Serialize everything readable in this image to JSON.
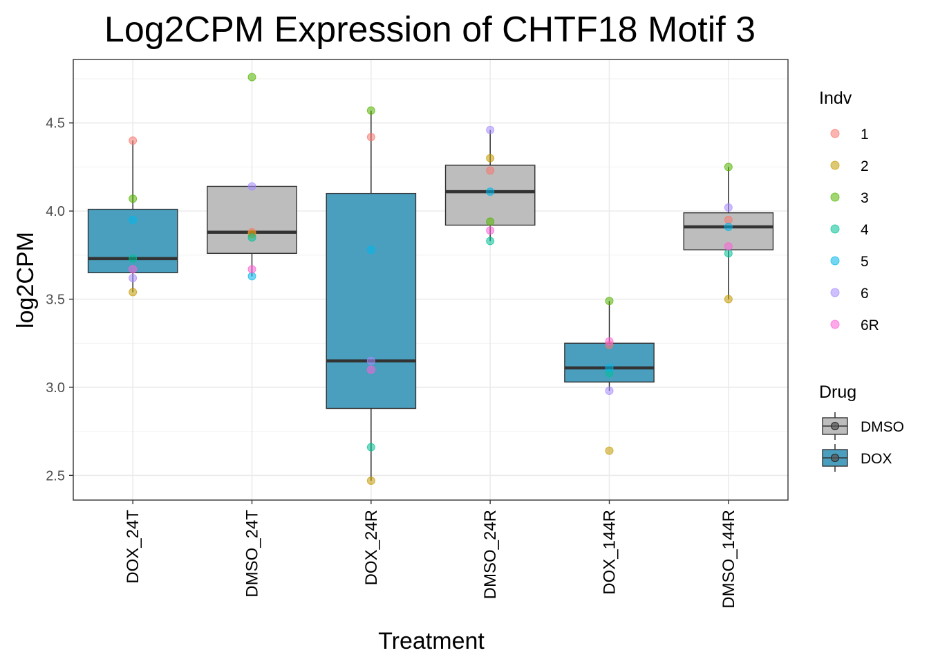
{
  "chart_data": {
    "type": "boxplot",
    "title": "Log2CPM Expression of CHTF18 Motif 3",
    "xlabel": "Treatment",
    "ylabel": "log2CPM",
    "ylim": [
      2.36,
      4.86
    ],
    "yticks": [
      2.5,
      3.0,
      3.5,
      4.0,
      4.5
    ],
    "ytick_labels": [
      "2.5",
      "3.0",
      "3.5",
      "4.0",
      "4.5"
    ],
    "grid": true,
    "legend_placement": "right",
    "categories": [
      "DOX_24T",
      "DMSO_24T",
      "DOX_24R",
      "DMSO_24R",
      "DOX_144R",
      "DMSO_144R"
    ],
    "fill_legend": {
      "title": "Drug",
      "entries": [
        {
          "name": "DMSO",
          "color": "#bdbdbd"
        },
        {
          "name": "DOX",
          "color": "#4a9fbf"
        }
      ]
    },
    "color_legend": {
      "title": "Indv",
      "entries": [
        {
          "name": "1",
          "color": "#F8766D"
        },
        {
          "name": "2",
          "color": "#C49A00"
        },
        {
          "name": "3",
          "color": "#53B400"
        },
        {
          "name": "4",
          "color": "#00C094"
        },
        {
          "name": "5",
          "color": "#00B6EB"
        },
        {
          "name": "6",
          "color": "#A58AFF"
        },
        {
          "name": "6R",
          "color": "#FB61D7"
        }
      ]
    },
    "boxes": [
      {
        "category": "DOX_24T",
        "drug": "DOX",
        "whisker_low": 3.54,
        "q1": 3.65,
        "median": 3.73,
        "q3": 4.01,
        "whisker_high": 4.4
      },
      {
        "category": "DMSO_24T",
        "drug": "DMSO",
        "whisker_low": 3.63,
        "q1": 3.76,
        "median": 3.88,
        "q3": 4.14,
        "whisker_high": 4.14
      },
      {
        "category": "DOX_24R",
        "drug": "DOX",
        "whisker_low": 2.47,
        "q1": 2.88,
        "median": 3.15,
        "q3": 4.1,
        "whisker_high": 4.57
      },
      {
        "category": "DMSO_24R",
        "drug": "DMSO",
        "whisker_low": 3.83,
        "q1": 3.92,
        "median": 4.11,
        "q3": 4.26,
        "whisker_high": 4.46
      },
      {
        "category": "DOX_144R",
        "drug": "DOX",
        "whisker_low": 2.98,
        "q1": 3.03,
        "median": 3.11,
        "q3": 3.25,
        "whisker_high": 3.49
      },
      {
        "category": "DMSO_144R",
        "drug": "DMSO",
        "whisker_low": 3.5,
        "q1": 3.78,
        "median": 3.91,
        "q3": 3.99,
        "whisker_high": 4.25
      }
    ],
    "points": [
      {
        "category": "DOX_24T",
        "indv": "1",
        "value": 4.4
      },
      {
        "category": "DOX_24T",
        "indv": "2",
        "value": 3.54
      },
      {
        "category": "DOX_24T",
        "indv": "3",
        "value": 4.07
      },
      {
        "category": "DOX_24T",
        "indv": "4",
        "value": 3.73
      },
      {
        "category": "DOX_24T",
        "indv": "5",
        "value": 3.95
      },
      {
        "category": "DOX_24T",
        "indv": "6",
        "value": 3.62
      },
      {
        "category": "DOX_24T",
        "indv": "6R",
        "value": 3.67
      },
      {
        "category": "DMSO_24T",
        "indv": "1",
        "value": 3.88
      },
      {
        "category": "DMSO_24T",
        "indv": "2",
        "value": 3.87
      },
      {
        "category": "DMSO_24T",
        "indv": "3",
        "value": 4.76
      },
      {
        "category": "DMSO_24T",
        "indv": "4",
        "value": 3.85
      },
      {
        "category": "DMSO_24T",
        "indv": "5",
        "value": 3.63
      },
      {
        "category": "DMSO_24T",
        "indv": "6",
        "value": 4.14
      },
      {
        "category": "DMSO_24T",
        "indv": "6R",
        "value": 3.67
      },
      {
        "category": "DOX_24R",
        "indv": "1",
        "value": 4.42
      },
      {
        "category": "DOX_24R",
        "indv": "2",
        "value": 2.47
      },
      {
        "category": "DOX_24R",
        "indv": "3",
        "value": 4.57
      },
      {
        "category": "DOX_24R",
        "indv": "4",
        "value": 2.66
      },
      {
        "category": "DOX_24R",
        "indv": "5",
        "value": 3.78
      },
      {
        "category": "DOX_24R",
        "indv": "6",
        "value": 3.15
      },
      {
        "category": "DOX_24R",
        "indv": "6R",
        "value": 3.1
      },
      {
        "category": "DMSO_24R",
        "indv": "1",
        "value": 4.23
      },
      {
        "category": "DMSO_24R",
        "indv": "2",
        "value": 4.3
      },
      {
        "category": "DMSO_24R",
        "indv": "3",
        "value": 3.94
      },
      {
        "category": "DMSO_24R",
        "indv": "4",
        "value": 3.83
      },
      {
        "category": "DMSO_24R",
        "indv": "5",
        "value": 4.11
      },
      {
        "category": "DMSO_24R",
        "indv": "6",
        "value": 4.46
      },
      {
        "category": "DMSO_24R",
        "indv": "6R",
        "value": 3.89
      },
      {
        "category": "DOX_144R",
        "indv": "1",
        "value": 3.24
      },
      {
        "category": "DOX_144R",
        "indv": "2",
        "value": 2.64
      },
      {
        "category": "DOX_144R",
        "indv": "3",
        "value": 3.49
      },
      {
        "category": "DOX_144R",
        "indv": "4",
        "value": 3.08
      },
      {
        "category": "DOX_144R",
        "indv": "5",
        "value": 3.11
      },
      {
        "category": "DOX_144R",
        "indv": "6",
        "value": 2.98
      },
      {
        "category": "DOX_144R",
        "indv": "6R",
        "value": 3.26
      },
      {
        "category": "DMSO_144R",
        "indv": "1",
        "value": 3.95
      },
      {
        "category": "DMSO_144R",
        "indv": "2",
        "value": 3.5
      },
      {
        "category": "DMSO_144R",
        "indv": "3",
        "value": 4.25
      },
      {
        "category": "DMSO_144R",
        "indv": "4",
        "value": 3.76
      },
      {
        "category": "DMSO_144R",
        "indv": "5",
        "value": 3.91
      },
      {
        "category": "DMSO_144R",
        "indv": "6",
        "value": 4.02
      },
      {
        "category": "DMSO_144R",
        "indv": "6R",
        "value": 3.8
      }
    ]
  }
}
